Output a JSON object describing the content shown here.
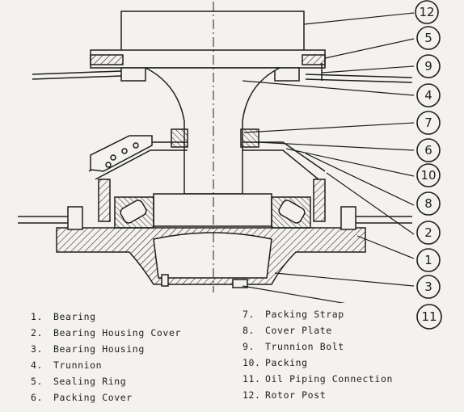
{
  "callouts": [
    "12",
    "5",
    "9",
    "4",
    "7",
    "6",
    "10",
    "8",
    "2",
    "1",
    "3",
    "11"
  ],
  "legend": {
    "left": [
      {
        "num": "1.",
        "label": "Bearing"
      },
      {
        "num": "2.",
        "label": "Bearing Housing Cover"
      },
      {
        "num": "3.",
        "label": "Bearing Housing"
      },
      {
        "num": "4.",
        "label": "Trunnion"
      },
      {
        "num": "5.",
        "label": "Sealing Ring"
      },
      {
        "num": "6.",
        "label": "Packing Cover"
      }
    ],
    "right": [
      {
        "num": "7.",
        "label": "Packing Strap"
      },
      {
        "num": "8.",
        "label": "Cover Plate"
      },
      {
        "num": "9.",
        "label": "Trunnion Bolt"
      },
      {
        "num": "10.",
        "label": "Packing"
      },
      {
        "num": "11.",
        "label": "Oil Piping Connection"
      },
      {
        "num": "12.",
        "label": "Rotor Post"
      }
    ]
  },
  "colors": {
    "ink": "#1e1e1e",
    "paper": "#f4f2ee"
  }
}
